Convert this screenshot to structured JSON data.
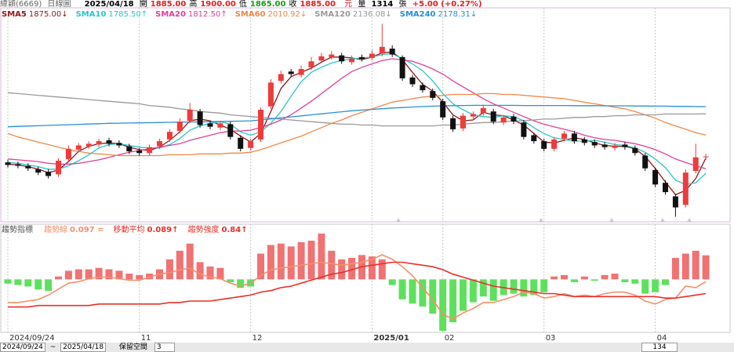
{
  "quote": {
    "name": "緯穎(6669)",
    "period": "日線圖",
    "date": "2025/04/18",
    "fields": [
      {
        "label": "開",
        "value": "1885.00",
        "color": "#e02020"
      },
      {
        "label": "高",
        "value": "1900.00",
        "color": "#e02020"
      },
      {
        "label": "低",
        "value": "1865.00",
        "color": "#1a9a1a"
      },
      {
        "label": "收",
        "value": "1885.00",
        "color": "#e02020"
      }
    ],
    "unit": "元",
    "volume_label": "量",
    "volume": "1314",
    "volume_unit": "張",
    "change": "+5.00 (+0.27%)"
  },
  "toolbar": {
    "start": "2024/09/24",
    "separator": "~",
    "end": "2025/04/18",
    "space_label": "保留空間",
    "space": "3",
    "count": "134"
  },
  "chart_data": [
    {
      "type": "candlestick",
      "categories": [
        "2024/09/24",
        null,
        null,
        null,
        null,
        null,
        null,
        null,
        null,
        null,
        null,
        null,
        null,
        "11",
        null,
        null,
        null,
        null,
        null,
        null,
        null,
        null,
        null,
        null,
        "12",
        null,
        null,
        null,
        null,
        null,
        null,
        null,
        null,
        null,
        null,
        null,
        "2025/01",
        null,
        null,
        null,
        null,
        null,
        null,
        "02",
        null,
        null,
        null,
        null,
        null,
        null,
        null,
        null,
        null,
        "03",
        null,
        null,
        null,
        null,
        null,
        null,
        null,
        null,
        null,
        null,
        "04",
        null,
        null,
        null,
        null,
        null
      ],
      "open": [
        1850,
        1840,
        1830,
        1810,
        1795,
        1780,
        1870,
        1925,
        1945,
        1955,
        1980,
        1965,
        1945,
        1920,
        1905,
        1945,
        1985,
        2035,
        2095,
        2150,
        2080,
        2055,
        2075,
        1995,
        1935,
        1985,
        2180,
        2330,
        2385,
        2365,
        2410,
        2450,
        2470,
        2480,
        2440,
        2470,
        2465,
        2490,
        2520,
        2470,
        2350,
        2305,
        2270,
        2210,
        2110,
        2050,
        2120,
        2140,
        2150,
        2085,
        2120,
        2085,
        2010,
        1975,
        1930,
        1990,
        2020,
        1985,
        1970,
        1955,
        1935,
        1955,
        1935,
        1890,
        1805,
        1730,
        1650,
        1600,
        1800,
        1885
      ],
      "high": [
        1865,
        1855,
        1845,
        1825,
        1810,
        1875,
        1950,
        1965,
        1975,
        1990,
        1995,
        1980,
        1960,
        1935,
        1955,
        1990,
        2045,
        2110,
        2200,
        2165,
        2095,
        2095,
        2090,
        2010,
        1990,
        2175,
        2340,
        2390,
        2400,
        2420,
        2470,
        2495,
        2505,
        2495,
        2480,
        2485,
        2510,
        2665,
        2540,
        2480,
        2365,
        2320,
        2285,
        2225,
        2125,
        2140,
        2150,
        2190,
        2165,
        2130,
        2135,
        2100,
        2025,
        1990,
        2000,
        2035,
        2035,
        2000,
        1985,
        1970,
        1965,
        1970,
        1950,
        1905,
        1820,
        1745,
        1665,
        1810,
        1960,
        1900
      ],
      "low": [
        1820,
        1815,
        1800,
        1775,
        1755,
        1765,
        1855,
        1910,
        1930,
        1940,
        1945,
        1935,
        1900,
        1890,
        1890,
        1930,
        1970,
        2020,
        2080,
        2055,
        2045,
        2040,
        1985,
        1915,
        1920,
        1970,
        2165,
        2315,
        2355,
        2350,
        2395,
        2435,
        2455,
        2430,
        2425,
        2445,
        2450,
        2475,
        2470,
        2330,
        2295,
        2260,
        2215,
        2100,
        2030,
        2035,
        2105,
        2125,
        2075,
        2070,
        2075,
        1985,
        1960,
        1915,
        1915,
        1975,
        1960,
        1950,
        1935,
        1925,
        1920,
        1925,
        1890,
        1800,
        1705,
        1660,
        1530,
        1585,
        1785,
        1865
      ],
      "close": [
        1835,
        1830,
        1815,
        1790,
        1770,
        1860,
        1930,
        1950,
        1960,
        1975,
        1960,
        1950,
        1915,
        1905,
        1940,
        1975,
        2030,
        2090,
        2160,
        2070,
        2060,
        2080,
        2000,
        1930,
        1975,
        2160,
        2320,
        2370,
        2370,
        2400,
        2445,
        2475,
        2485,
        2445,
        2460,
        2460,
        2490,
        2530,
        2485,
        2345,
        2310,
        2275,
        2230,
        2115,
        2045,
        2125,
        2135,
        2170,
        2090,
        2115,
        2090,
        2000,
        1975,
        1930,
        1985,
        2020,
        1975,
        1965,
        1950,
        1940,
        1950,
        1940,
        1905,
        1815,
        1720,
        1675,
        1585,
        1790,
        1880,
        1885
      ],
      "up_color": "#ee3b3b",
      "down_color": "#111111",
      "ylim": [
        1500,
        2760
      ],
      "series": [
        {
          "name": "SMA5",
          "legend_label": "1875.00↓",
          "color": "#8b1a1a",
          "values": [
            1840,
            1835,
            1825,
            1810,
            1790,
            1805,
            1855,
            1915,
            1945,
            1960,
            1965,
            1960,
            1940,
            1925,
            1920,
            1940,
            1980,
            2030,
            2095,
            2105,
            2095,
            2070,
            2045,
            2005,
            1970,
            2020,
            2150,
            2285,
            2355,
            2380,
            2405,
            2440,
            2470,
            2470,
            2465,
            2455,
            2470,
            2495,
            2500,
            2455,
            2380,
            2310,
            2270,
            2205,
            2130,
            2095,
            2100,
            2145,
            2130,
            2125,
            2100,
            2070,
            2020,
            1970,
            1965,
            1980,
            1995,
            1985,
            1965,
            1950,
            1945,
            1945,
            1930,
            1885,
            1815,
            1735,
            1660,
            1685,
            1755,
            1875
          ]
        },
        {
          "name": "SMA10",
          "legend_label": "1785.50↑",
          "color": "#2cc6c6",
          "values": [
            1850,
            1845,
            1835,
            1825,
            1810,
            1810,
            1830,
            1860,
            1895,
            1935,
            1955,
            1960,
            1950,
            1940,
            1935,
            1935,
            1955,
            1990,
            2040,
            2065,
            2080,
            2090,
            2075,
            2030,
            2010,
            2030,
            2080,
            2150,
            2240,
            2325,
            2380,
            2410,
            2435,
            2450,
            2460,
            2465,
            2470,
            2485,
            2490,
            2460,
            2430,
            2390,
            2330,
            2255,
            2195,
            2160,
            2130,
            2120,
            2115,
            2125,
            2120,
            2095,
            2055,
            2020,
            1995,
            1985,
            1975,
            1975,
            1980,
            1970,
            1955,
            1950,
            1935,
            1910,
            1870,
            1820,
            1745,
            1720,
            1730,
            1785.5
          ]
        },
        {
          "name": "SMA20",
          "legend_label": "1812.50↑",
          "color": "#e0409a",
          "values": [
            1870,
            1865,
            1860,
            1855,
            1845,
            1840,
            1840,
            1845,
            1855,
            1865,
            1880,
            1895,
            1910,
            1920,
            1930,
            1940,
            1950,
            1960,
            1980,
            1995,
            2010,
            2025,
            2035,
            2035,
            2040,
            2055,
            2075,
            2100,
            2130,
            2170,
            2210,
            2255,
            2300,
            2345,
            2385,
            2410,
            2430,
            2450,
            2460,
            2455,
            2445,
            2425,
            2400,
            2370,
            2330,
            2295,
            2260,
            2225,
            2195,
            2170,
            2145,
            2120,
            2095,
            2075,
            2060,
            2045,
            2030,
            2010,
            1995,
            1985,
            1980,
            1970,
            1960,
            1945,
            1925,
            1900,
            1870,
            1850,
            1830,
            1812.5
          ]
        },
        {
          "name": "SMA60",
          "legend_label": "2010.92↓",
          "color": "#f0884a",
          "values": [
            2020,
            2000,
            1985,
            1970,
            1955,
            1940,
            1925,
            1915,
            1905,
            1900,
            1895,
            1890,
            1890,
            1890,
            1890,
            1890,
            1895,
            1895,
            1895,
            1900,
            1900,
            1900,
            1905,
            1905,
            1910,
            1925,
            1945,
            1965,
            1985,
            2005,
            2030,
            2055,
            2080,
            2100,
            2125,
            2145,
            2165,
            2185,
            2205,
            2215,
            2225,
            2235,
            2240,
            2245,
            2250,
            2250,
            2250,
            2255,
            2255,
            2250,
            2250,
            2245,
            2240,
            2235,
            2230,
            2225,
            2215,
            2205,
            2195,
            2185,
            2175,
            2165,
            2150,
            2130,
            2110,
            2085,
            2065,
            2045,
            2025,
            2010.92
          ]
        },
        {
          "name": "SMA120",
          "legend_label": "2136.08↓",
          "color": "#9a9a9a",
          "values": [
            2260,
            2255,
            2250,
            2245,
            2240,
            2235,
            2230,
            2225,
            2220,
            2215,
            2210,
            2205,
            2200,
            2195,
            2185,
            2180,
            2175,
            2165,
            2160,
            2150,
            2145,
            2140,
            2130,
            2125,
            2120,
            2115,
            2110,
            2105,
            2100,
            2095,
            2090,
            2085,
            2080,
            2075,
            2075,
            2070,
            2070,
            2065,
            2065,
            2065,
            2065,
            2065,
            2065,
            2070,
            2070,
            2075,
            2080,
            2085,
            2085,
            2090,
            2095,
            2095,
            2100,
            2105,
            2105,
            2110,
            2115,
            2115,
            2120,
            2120,
            2125,
            2125,
            2130,
            2130,
            2130,
            2135,
            2135,
            2135,
            2135,
            2136.08
          ]
        },
        {
          "name": "SMA240",
          "legend_label": "2178.31↓",
          "color": "#2a8fd8",
          "values": [
            2060,
            2062,
            2064,
            2066,
            2068,
            2070,
            2072,
            2074,
            2076,
            2078,
            2080,
            2081,
            2082,
            2083,
            2084,
            2085,
            2086,
            2087,
            2088,
            2089,
            2090,
            2091,
            2092,
            2093,
            2095,
            2100,
            2106,
            2112,
            2118,
            2124,
            2130,
            2136,
            2142,
            2148,
            2154,
            2158,
            2162,
            2166,
            2170,
            2173,
            2176,
            2179,
            2181,
            2183,
            2184,
            2185,
            2186,
            2186,
            2186,
            2186,
            2186,
            2185,
            2185,
            2185,
            2185,
            2185,
            2184,
            2184,
            2184,
            2183,
            2183,
            2183,
            2182,
            2182,
            2181,
            2181,
            2180,
            2180,
            2179,
            2178.31
          ]
        }
      ]
    },
    {
      "type": "bar",
      "title": "趨勢指標",
      "name": "趨勢強度",
      "legend_label": "0.84↑",
      "values": [
        -0.15,
        -0.2,
        -0.25,
        -0.35,
        -0.4,
        0.1,
        0.3,
        0.35,
        0.35,
        0.4,
        0.35,
        0.3,
        0.2,
        0.15,
        0.2,
        0.35,
        0.7,
        1.0,
        1.25,
        0.6,
        0.45,
        0.4,
        -0.1,
        -0.3,
        -0.25,
        0.9,
        1.2,
        1.25,
        1.15,
        1.3,
        1.35,
        1.6,
        1.0,
        0.7,
        0.75,
        0.85,
        0.8,
        0.7,
        -0.2,
        -0.7,
        -0.85,
        -0.95,
        -1.2,
        -1.8,
        -1.5,
        -1.1,
        -0.8,
        -0.6,
        -0.75,
        -0.55,
        -0.5,
        -0.6,
        -0.55,
        -0.45,
        0.1,
        0.15,
        -0.1,
        0.1,
        -0.05,
        0.15,
        0.2,
        -0.1,
        -0.15,
        -0.5,
        -0.45,
        -0.2,
        0.75,
        0.9,
        1.0,
        0.84
      ],
      "up_color": "#f07272",
      "down_color": "#5ee05e",
      "ylim": [
        -1.8,
        1.9
      ],
      "y2lim": [
        0.064,
        0.135
      ],
      "series": [
        {
          "name": "趨勢線",
          "legend_label": "0.097 =",
          "color": "#f4906a",
          "axis": "y2",
          "values": [
            0.083,
            0.083,
            0.084,
            0.085,
            0.088,
            0.092,
            0.096,
            0.097,
            0.099,
            0.1,
            0.1,
            0.099,
            0.098,
            0.098,
            0.1,
            0.102,
            0.103,
            0.105,
            0.106,
            0.102,
            0.1,
            0.099,
            0.096,
            0.094,
            0.096,
            0.101,
            0.105,
            0.106,
            0.107,
            0.108,
            0.109,
            0.11,
            0.109,
            0.108,
            0.109,
            0.11,
            0.112,
            0.115,
            0.112,
            0.107,
            0.101,
            0.093,
            0.085,
            0.075,
            0.072,
            0.076,
            0.079,
            0.083,
            0.083,
            0.085,
            0.087,
            0.09,
            0.089,
            0.086,
            0.087,
            0.089,
            0.087,
            0.088,
            0.087,
            0.089,
            0.09,
            0.09,
            0.088,
            0.084,
            0.082,
            0.085,
            0.086,
            0.094,
            0.093,
            0.097
          ]
        },
        {
          "name": "移動平均",
          "legend_label": "0.089↑",
          "color": "#e8302a",
          "axis": "y2",
          "values": [
            0.08,
            0.08,
            0.08,
            0.081,
            0.081,
            0.081,
            0.081,
            0.081,
            0.081,
            0.082,
            0.082,
            0.082,
            0.082,
            0.082,
            0.082,
            0.082,
            0.083,
            0.083,
            0.084,
            0.084,
            0.084,
            0.085,
            0.086,
            0.087,
            0.088,
            0.09,
            0.091,
            0.093,
            0.094,
            0.096,
            0.098,
            0.1,
            0.102,
            0.103,
            0.105,
            0.107,
            0.108,
            0.109,
            0.11,
            0.11,
            0.109,
            0.108,
            0.107,
            0.105,
            0.102,
            0.1,
            0.098,
            0.096,
            0.094,
            0.093,
            0.092,
            0.091,
            0.09,
            0.089,
            0.089,
            0.088,
            0.087,
            0.087,
            0.087,
            0.087,
            0.087,
            0.087,
            0.087,
            0.087,
            0.087,
            0.086,
            0.086,
            0.087,
            0.088,
            0.089
          ]
        }
      ]
    }
  ]
}
